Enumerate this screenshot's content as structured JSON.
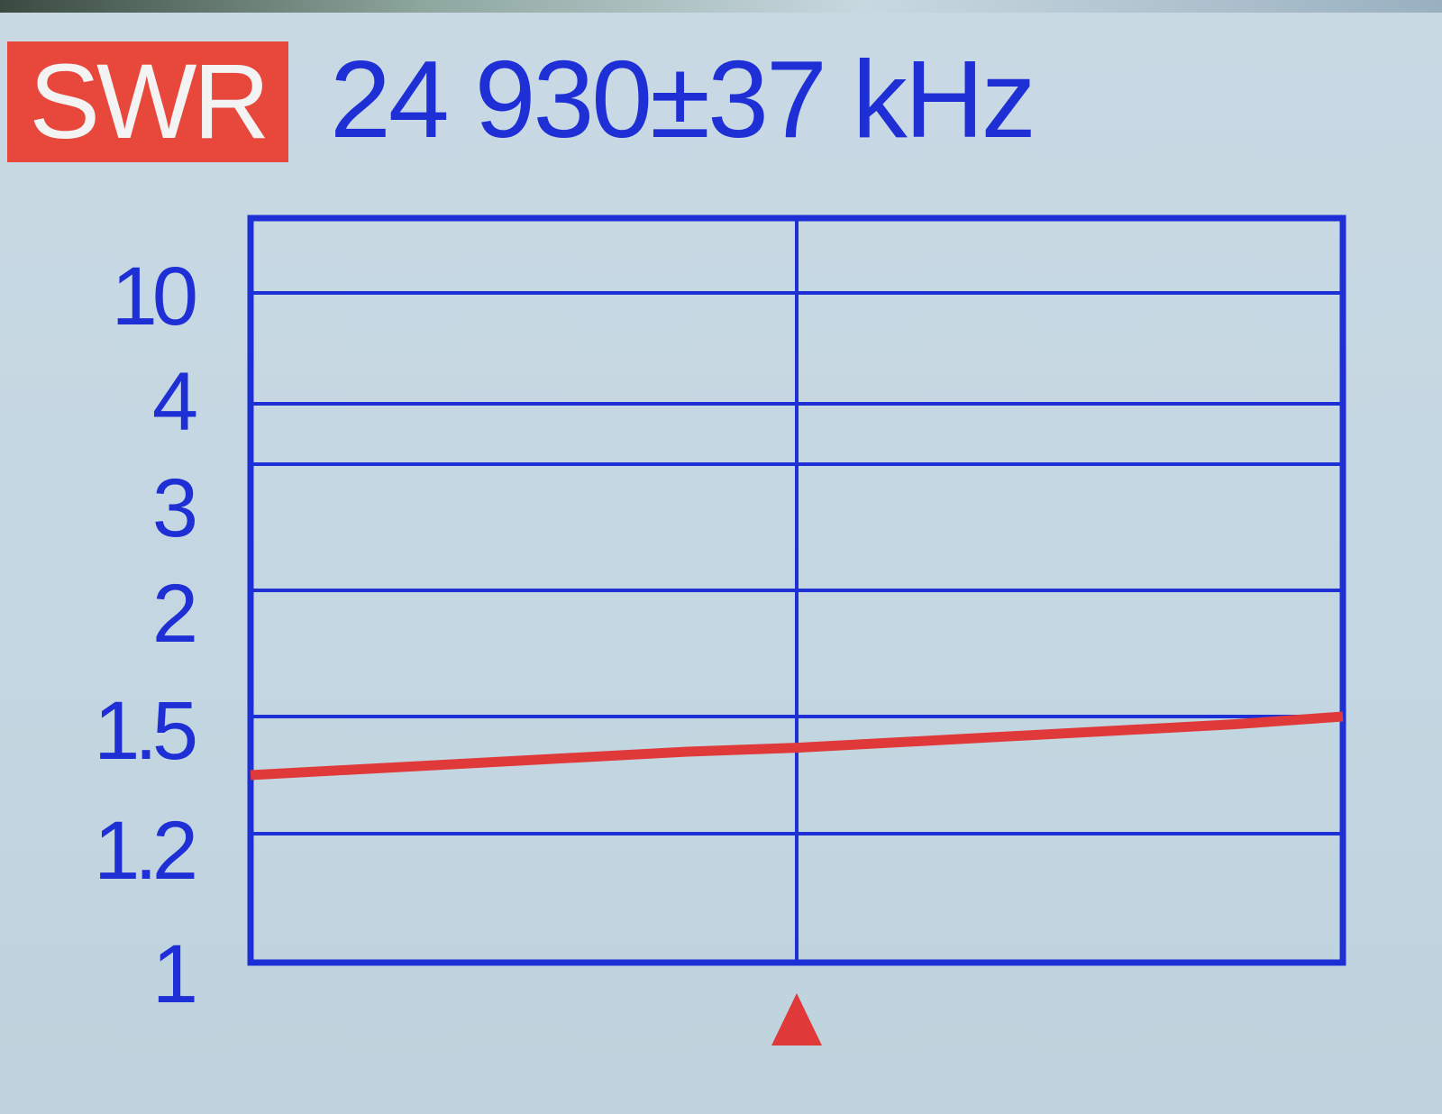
{
  "header": {
    "mode_label": "SWR",
    "frequency": "24 930±37 kHz"
  },
  "colors": {
    "grid": "#1f2fd6",
    "trace": "#e0393a",
    "badge": "#e8473c",
    "background": "#c5d7e2"
  },
  "chart_data": {
    "type": "line",
    "title": "",
    "xlabel": "",
    "ylabel": "",
    "y_scale": "non-linear (SWR)",
    "yticks": [
      "10",
      "4",
      "3",
      "2",
      "1.5",
      "1.2",
      "1"
    ],
    "ytick_values": [
      10,
      4,
      3,
      2,
      1.5,
      1.2,
      1
    ],
    "xlim": [
      24893,
      24967
    ],
    "x_center": 24930,
    "grid": true,
    "center_marker": "red-triangle",
    "series": [
      {
        "x": [
          24893,
          24900.4,
          24907.8,
          24915.2,
          24922.6,
          24930,
          24937.4,
          24944.8,
          24952.2,
          24959.6,
          24967
        ],
        "values": [
          1.35,
          1.365,
          1.38,
          1.395,
          1.41,
          1.42,
          1.435,
          1.45,
          1.465,
          1.48,
          1.5
        ]
      }
    ]
  }
}
